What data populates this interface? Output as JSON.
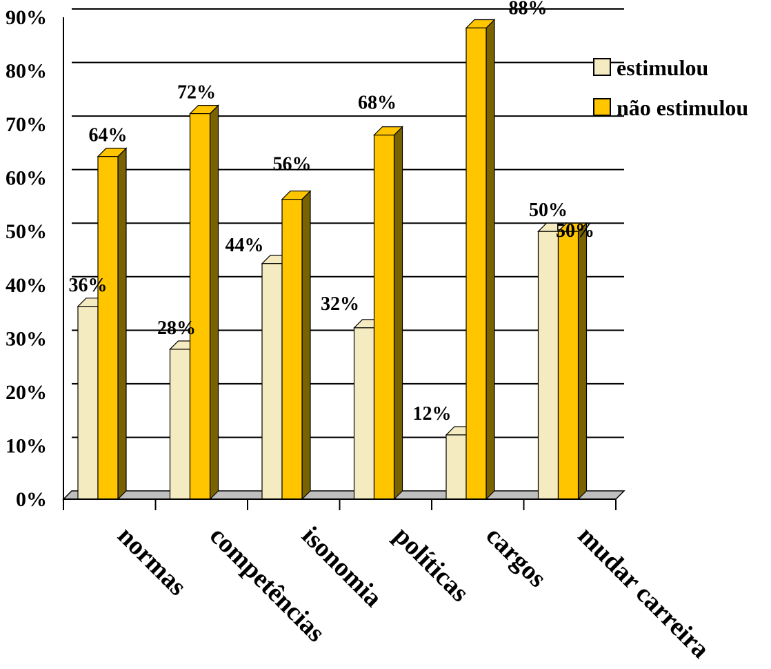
{
  "chart_data": {
    "type": "bar",
    "title": "",
    "xlabel": "",
    "ylabel": "",
    "ylim": [
      0,
      90
    ],
    "ytick_step": 10,
    "ytick_labels": [
      "0%",
      "10%",
      "20%",
      "30%",
      "40%",
      "50%",
      "60%",
      "70%",
      "80%",
      "90%"
    ],
    "grid": true,
    "three_d": true,
    "legend_position": "right",
    "categories": [
      "normas",
      "competências",
      "isonomia",
      "políticas",
      "cargos",
      "mudar carreira"
    ],
    "series": [
      {
        "name": "estimulou",
        "color": "#F5EBC0",
        "side_color": "#C9BE93",
        "values": [
          36,
          28,
          44,
          32,
          12,
          50
        ],
        "labels": [
          "36%",
          "28%",
          "44%",
          "32%",
          "12%",
          "50%"
        ]
      },
      {
        "name": "não estimulou",
        "color": "#FFC600",
        "side_color": "#7A6200",
        "values": [
          64,
          72,
          56,
          68,
          88,
          50
        ],
        "labels": [
          "64%",
          "72%",
          "56%",
          "68%",
          "88%",
          "50%"
        ]
      }
    ]
  }
}
